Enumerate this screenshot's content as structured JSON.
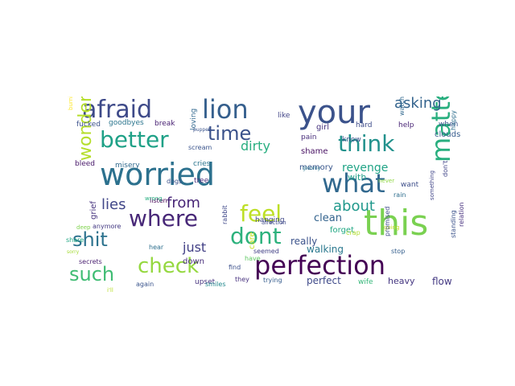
{
  "words": [
    {
      "text": "worried",
      "color": "#2c718e"
    },
    {
      "text": "your",
      "color": "#3b528b"
    },
    {
      "text": "this",
      "color": "#7ad151"
    },
    {
      "text": "perfection",
      "color": "#440154"
    },
    {
      "text": "matter",
      "color": "#29af7f"
    },
    {
      "text": "what",
      "color": "#31688e"
    },
    {
      "text": "lion",
      "color": "#355f8d"
    },
    {
      "text": "afraid",
      "color": "#3e4a89"
    },
    {
      "text": "check",
      "color": "#95d840"
    },
    {
      "text": "wonder",
      "color": "#b5de2b"
    },
    {
      "text": "better",
      "color": "#1fa187"
    },
    {
      "text": "think",
      "color": "#21918c"
    },
    {
      "text": "where",
      "color": "#482878"
    },
    {
      "text": "dont",
      "color": "#2db27d"
    },
    {
      "text": "feel",
      "color": "#bddf26"
    },
    {
      "text": "shit",
      "color": "#2c728e"
    },
    {
      "text": "such",
      "color": "#3fbc73"
    },
    {
      "text": "time",
      "color": "#3b528b"
    },
    {
      "text": "asking",
      "color": "#33638d"
    },
    {
      "text": "lies",
      "color": "#404688"
    },
    {
      "text": "from",
      "color": "#482677"
    },
    {
      "text": "about",
      "color": "#1f988b"
    },
    {
      "text": "just",
      "color": "#424086"
    },
    {
      "text": "dirty",
      "color": "#28ae80"
    },
    {
      "text": "revenge",
      "color": "#20a486"
    },
    {
      "text": "clean",
      "color": "#33638d"
    },
    {
      "text": "really",
      "color": "#3b528b"
    },
    {
      "text": "walking",
      "color": "#2a788e"
    },
    {
      "text": "perfect",
      "color": "#3e4989"
    },
    {
      "text": "flow",
      "color": "#443983"
    },
    {
      "text": "heavy",
      "color": "#453781"
    },
    {
      "text": "down",
      "color": "#472c7a"
    },
    {
      "text": "memory",
      "color": "#39568c"
    },
    {
      "text": "shame",
      "color": "#471063"
    },
    {
      "text": "with",
      "color": "#1f9e89"
    },
    {
      "text": "girl",
      "color": "#46337e"
    },
    {
      "text": "know",
      "color": "#3b528b"
    },
    {
      "text": "pain",
      "color": "#472d7b"
    },
    {
      "text": "like",
      "color": "#414487"
    },
    {
      "text": "forget",
      "color": "#22a884"
    },
    {
      "text": "hard",
      "color": "#3e4c8a"
    },
    {
      "text": "help",
      "color": "#482475"
    },
    {
      "text": "when",
      "color": "#3a548c"
    },
    {
      "text": "want",
      "color": "#3d4e8a"
    },
    {
      "text": "never",
      "color": "#8fd744"
    },
    {
      "text": "rain",
      "color": "#2e6e8e"
    },
    {
      "text": "going",
      "color": "#c2df23"
    },
    {
      "text": "stop",
      "color": "#355f8d"
    },
    {
      "text": "hanging",
      "color": "#3f4788"
    },
    {
      "text": "seemed",
      "color": "#424086"
    },
    {
      "text": "listen",
      "color": "#440154"
    },
    {
      "text": "crap",
      "color": "#b0dd2f"
    },
    {
      "text": "find",
      "color": "#3c508b"
    },
    {
      "text": "have",
      "color": "#5ec962"
    },
    {
      "text": "they",
      "color": "#46307e"
    },
    {
      "text": "trying",
      "color": "#365d8d"
    },
    {
      "text": "upset",
      "color": "#46327e"
    },
    {
      "text": "smiles",
      "color": "#23898e"
    },
    {
      "text": "again",
      "color": "#3a548c"
    },
    {
      "text": "secrets",
      "color": "#481f70"
    },
    {
      "text": "share",
      "color": "#22a884"
    },
    {
      "text": "hear",
      "color": "#2e6f8e"
    },
    {
      "text": "anymore",
      "color": "#443a83"
    },
    {
      "text": "deep",
      "color": "#7fd34e"
    },
    {
      "text": "wrong",
      "color": "#28ae80"
    },
    {
      "text": "bleed",
      "color": "#48186a"
    },
    {
      "text": "misery",
      "color": "#306a8e"
    },
    {
      "text": "cries",
      "color": "#2b758e"
    },
    {
      "text": "dogs",
      "color": "#3b528b"
    },
    {
      "text": "tree",
      "color": "#472a7a"
    },
    {
      "text": "scream",
      "color": "#3a548c"
    },
    {
      "text": "goodbyes",
      "color": "#2b758e"
    },
    {
      "text": "break",
      "color": "#482173"
    },
    {
      "text": "fucked",
      "color": "#3b518b"
    },
    {
      "text": "clouds",
      "color": "#365c8d"
    },
    {
      "text": "affection",
      "color": "#3e4a89"
    },
    {
      "text": "loving",
      "color": "#31688e"
    },
    {
      "text": "grief",
      "color": "#46337e"
    },
    {
      "text": "rabbit",
      "color": "#3f4889"
    },
    {
      "text": "care",
      "color": "#c8e020"
    },
    {
      "text": "promised",
      "color": "#3e4c8a"
    },
    {
      "text": "standing",
      "color": "#3b528b"
    },
    {
      "text": "relation",
      "color": "#46307e"
    },
    {
      "text": "something",
      "color": "#404588"
    },
    {
      "text": "happy",
      "color": "#2e6e8e"
    },
    {
      "text": "watching",
      "color": "#31688e"
    },
    {
      "text": "burning",
      "color": "#fde725"
    },
    {
      "text": "wife",
      "color": "#35b779"
    },
    {
      "text": "gloomy",
      "color": "#2a768e"
    },
    {
      "text": "puppet",
      "color": "#3a548c"
    },
    {
      "text": "don't",
      "color": "#404588"
    },
    {
      "text": "i'll",
      "color": "#b8de29"
    },
    {
      "text": "sorry",
      "color": "#a5db36"
    }
  ]
}
